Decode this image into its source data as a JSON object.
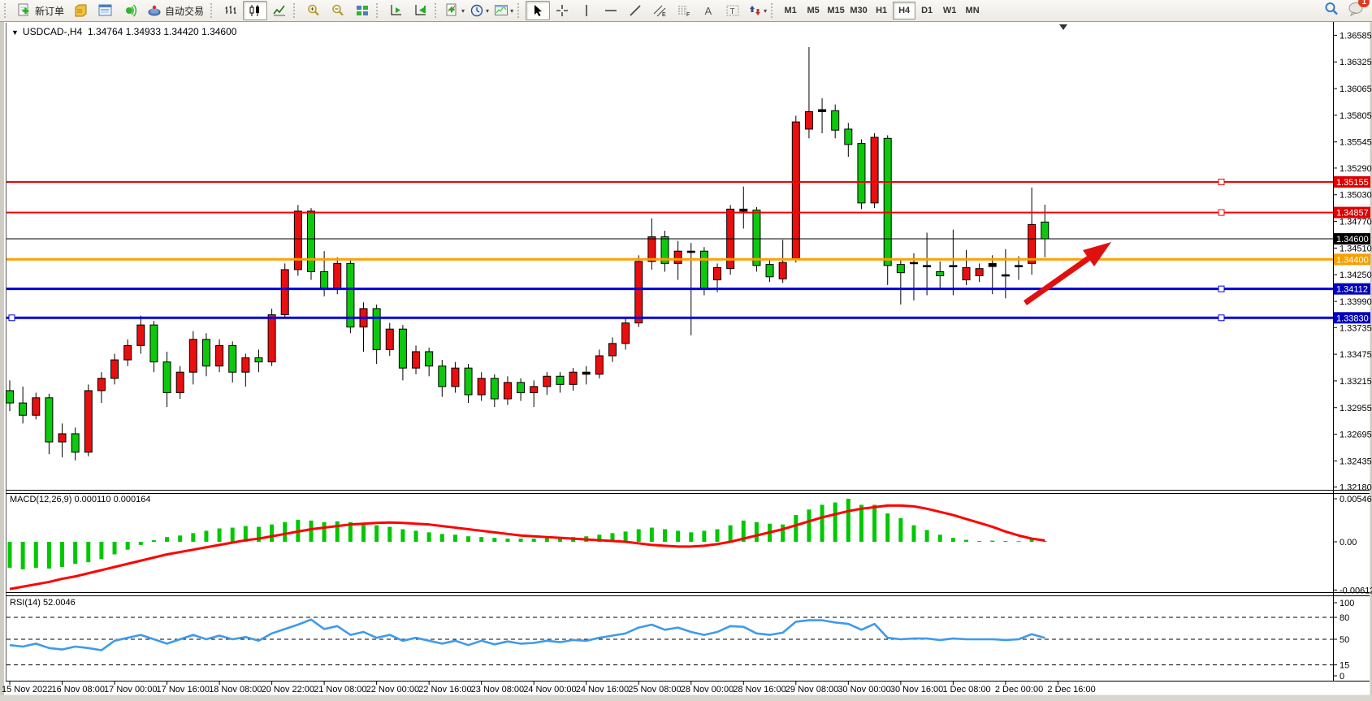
{
  "toolbar": {
    "new_order_label": "新订单",
    "autotrade_label": "自动交易",
    "timeframes": [
      "M1",
      "M5",
      "M15",
      "M30",
      "H1",
      "H4",
      "D1",
      "W1",
      "MN"
    ],
    "active_timeframe": "H4",
    "notification_count": "1",
    "buttons": [
      {
        "name": "new-order-button",
        "icon": "document-plus-icon",
        "label_key": "new_order_label",
        "group": 0
      },
      {
        "name": "profiles-button",
        "icon": "profiles-icon",
        "group": 0
      },
      {
        "name": "market-watch-button",
        "icon": "market-watch-icon",
        "group": 0
      },
      {
        "name": "signals-button",
        "icon": "signals-icon",
        "group": 0
      },
      {
        "name": "autotrade-button",
        "icon": "expert-hat-icon",
        "label_key": "autotrade_label",
        "group": 0
      },
      {
        "name": "bar-chart-button",
        "icon": "bar-chart-icon",
        "group": 1
      },
      {
        "name": "candlestick-button",
        "icon": "candlestick-icon",
        "active": true,
        "group": 1
      },
      {
        "name": "line-chart-button",
        "icon": "line-chart-icon",
        "group": 1
      },
      {
        "name": "zoom-in-button",
        "icon": "zoom-in-icon",
        "group": 2
      },
      {
        "name": "zoom-out-button",
        "icon": "zoom-out-icon",
        "group": 2
      },
      {
        "name": "tile-windows-button",
        "icon": "tile-windows-icon",
        "group": 2
      },
      {
        "name": "auto-scroll-button",
        "icon": "auto-scroll-icon",
        "group": 3
      },
      {
        "name": "chart-shift-button",
        "icon": "chart-shift-icon",
        "group": 3
      },
      {
        "name": "indicators-button",
        "icon": "indicators-icon",
        "dropdown": true,
        "group": 4
      },
      {
        "name": "periods-button",
        "icon": "clock-icon",
        "dropdown": true,
        "group": 4
      },
      {
        "name": "templates-button",
        "icon": "template-icon",
        "dropdown": true,
        "group": 4
      },
      {
        "name": "cursor-button",
        "icon": "cursor-icon",
        "active": true,
        "group": 5
      },
      {
        "name": "crosshair-button",
        "icon": "crosshair-icon",
        "group": 5
      },
      {
        "name": "vertical-line-button",
        "icon": "vertical-line-icon",
        "group": 5
      },
      {
        "name": "horizontal-line-button",
        "icon": "horizontal-line-icon",
        "group": 5
      },
      {
        "name": "trendline-button",
        "icon": "trendline-icon",
        "group": 5
      },
      {
        "name": "channel-button",
        "icon": "channel-icon",
        "group": 5
      },
      {
        "name": "fibonacci-button",
        "icon": "fibonacci-icon",
        "group": 5
      },
      {
        "name": "text-button",
        "icon": "letter-a-icon",
        "group": 5
      },
      {
        "name": "text-label-button",
        "icon": "label-t-icon",
        "group": 5
      },
      {
        "name": "arrows-button",
        "icon": "arrows-icon",
        "dropdown": true,
        "group": 5
      }
    ]
  },
  "chart": {
    "title": "USDCAD-,H4  1.34764 1.34933 1.34420 1.34600",
    "symbol": "USDCAD-",
    "period": "H4",
    "ohlc": {
      "open": "1.34764",
      "high": "1.34933",
      "low": "1.34420",
      "close": "1.34600"
    }
  },
  "indicators": {
    "macd_label": "MACD(12,26,9) 0.000110 0.000164",
    "rsi_label": "RSI(14) 52.0046",
    "macd_axis_labels": [
      "0.005469",
      "0.00",
      "-0.006124"
    ],
    "macd_axis_values": [
      0.005469,
      0.0,
      -0.006124
    ],
    "rsi_axis_labels": [
      "100",
      "80",
      "50",
      "15",
      "0"
    ],
    "rsi_axis_values": [
      100,
      80,
      50,
      15,
      0
    ],
    "rsi_dashed_levels": [
      80,
      50,
      15
    ]
  },
  "price_axis": {
    "labels": [
      "1.36585",
      "1.36325",
      "1.36065",
      "1.35805",
      "1.35545",
      "1.35290",
      "1.35030",
      "1.34770",
      "1.34510",
      "1.34250",
      "1.33990",
      "1.33735",
      "1.33475",
      "1.33215",
      "1.32955",
      "1.32695",
      "1.32435",
      "1.32180"
    ]
  },
  "time_axis": {
    "labels": [
      "15 Nov 2022",
      "16 Nov 08:00",
      "17 Nov 00:00",
      "17 Nov 16:00",
      "18 Nov 08:00",
      "20 Nov 22:00",
      "21 Nov 08:00",
      "22 Nov 00:00",
      "22 Nov 16:00",
      "23 Nov 08:00",
      "24 Nov 00:00",
      "24 Nov 16:00",
      "25 Nov 08:00",
      "28 Nov 00:00",
      "28 Nov 16:00",
      "29 Nov 08:00",
      "30 Nov 00:00",
      "30 Nov 16:00",
      "1 Dec 08:00",
      "2 Dec 00:00",
      "2 Dec 16:00"
    ]
  },
  "colors": {
    "candle_up": "#EA0F0F",
    "candle_down": "#0CC90C",
    "candle_outline": "#000000",
    "macd_histogram": "#00C800",
    "macd_signal": "#FF0000",
    "rsi_line": "#3E9BEA",
    "resistance_line": "#F40000",
    "pivot_line": "#FFA000",
    "support_line": "#0000DD",
    "current_price_line": "#000000"
  },
  "chart_data": [
    {
      "type": "candlestick",
      "title": "USDCAD- H4",
      "note": "OHLC per 4h bar, 15 Nov 2022 16:00 - 2 Dec 2022 16:00; up bars red, down bars green",
      "ylim": [
        1.3218,
        1.36585
      ],
      "candles": [
        [
          1.3312,
          1.3322,
          1.3292,
          1.33
        ],
        [
          1.33,
          1.3316,
          1.328,
          1.3288
        ],
        [
          1.3288,
          1.331,
          1.3284,
          1.3305
        ],
        [
          1.3305,
          1.3309,
          1.325,
          1.3262
        ],
        [
          1.3262,
          1.328,
          1.3247,
          1.327
        ],
        [
          1.327,
          1.3276,
          1.3244,
          1.3252
        ],
        [
          1.3252,
          1.3318,
          1.3248,
          1.3312
        ],
        [
          1.3312,
          1.333,
          1.33,
          1.3324
        ],
        [
          1.3324,
          1.3348,
          1.3318,
          1.3342
        ],
        [
          1.3342,
          1.3362,
          1.3336,
          1.3356
        ],
        [
          1.3356,
          1.3385,
          1.3348,
          1.3376
        ],
        [
          1.3376,
          1.338,
          1.333,
          1.334
        ],
        [
          1.334,
          1.335,
          1.3296,
          1.331
        ],
        [
          1.331,
          1.3336,
          1.3304,
          1.333
        ],
        [
          1.333,
          1.337,
          1.3318,
          1.3362
        ],
        [
          1.3362,
          1.3368,
          1.3326,
          1.3336
        ],
        [
          1.3336,
          1.3362,
          1.333,
          1.3356
        ],
        [
          1.3356,
          1.336,
          1.332,
          1.333
        ],
        [
          1.333,
          1.3348,
          1.3316,
          1.3344
        ],
        [
          1.3344,
          1.3352,
          1.333,
          1.334
        ],
        [
          1.334,
          1.3392,
          1.3336,
          1.3386
        ],
        [
          1.3386,
          1.3436,
          1.3382,
          1.343
        ],
        [
          1.343,
          1.3493,
          1.3424,
          1.3487
        ],
        [
          1.3487,
          1.349,
          1.342,
          1.3428
        ],
        [
          1.3428,
          1.3448,
          1.3404,
          1.3412
        ],
        [
          1.3412,
          1.3442,
          1.3406,
          1.3436
        ],
        [
          1.3436,
          1.344,
          1.3368,
          1.3374
        ],
        [
          1.3374,
          1.3398,
          1.335,
          1.3392
        ],
        [
          1.3392,
          1.3396,
          1.3338,
          1.3352
        ],
        [
          1.3352,
          1.3378,
          1.3346,
          1.3372
        ],
        [
          1.3372,
          1.3376,
          1.3322,
          1.3334
        ],
        [
          1.3334,
          1.3356,
          1.3328,
          1.335
        ],
        [
          1.335,
          1.3354,
          1.3326,
          1.3336
        ],
        [
          1.3336,
          1.3342,
          1.3306,
          1.3316
        ],
        [
          1.3316,
          1.334,
          1.331,
          1.3334
        ],
        [
          1.3334,
          1.3338,
          1.33,
          1.3308
        ],
        [
          1.3308,
          1.333,
          1.3302,
          1.3324
        ],
        [
          1.3324,
          1.3328,
          1.3296,
          1.3304
        ],
        [
          1.3304,
          1.3326,
          1.3298,
          1.332
        ],
        [
          1.332,
          1.3324,
          1.3302,
          1.331
        ],
        [
          1.331,
          1.3322,
          1.3296,
          1.3316
        ],
        [
          1.3316,
          1.333,
          1.3308,
          1.3326
        ],
        [
          1.3326,
          1.333,
          1.331,
          1.3318
        ],
        [
          1.3318,
          1.3334,
          1.3312,
          1.333
        ],
        [
          1.333,
          1.3336,
          1.3318,
          1.3328
        ],
        [
          1.3328,
          1.3352,
          1.3324,
          1.3346
        ],
        [
          1.3346,
          1.3364,
          1.334,
          1.3358
        ],
        [
          1.3358,
          1.3384,
          1.3352,
          1.3378
        ],
        [
          1.3378,
          1.3444,
          1.3374,
          1.3438
        ],
        [
          1.3438,
          1.348,
          1.343,
          1.3462
        ],
        [
          1.3462,
          1.3468,
          1.3428,
          1.3436
        ],
        [
          1.3436,
          1.3458,
          1.342,
          1.3448
        ],
        [
          1.3448,
          1.3456,
          1.3366,
          1.3448
        ],
        [
          1.3448,
          1.3452,
          1.3405,
          1.3411
        ],
        [
          1.342,
          1.3436,
          1.3408,
          1.3432
        ],
        [
          1.3431,
          1.3493,
          1.3425,
          1.3489
        ],
        [
          1.3489,
          1.3511,
          1.347,
          1.3487
        ],
        [
          1.3488,
          1.3491,
          1.3428,
          1.3434
        ],
        [
          1.3435,
          1.3441,
          1.3418,
          1.3423
        ],
        [
          1.3421,
          1.3459,
          1.3417,
          1.3437
        ],
        [
          1.3441,
          1.358,
          1.3437,
          1.3574
        ],
        [
          1.3567,
          1.3647,
          1.3558,
          1.3584
        ],
        [
          1.3586,
          1.3597,
          1.3563,
          1.3584
        ],
        [
          1.3585,
          1.3591,
          1.3558,
          1.3566
        ],
        [
          1.3567,
          1.3573,
          1.354,
          1.3552
        ],
        [
          1.3553,
          1.3557,
          1.3489,
          1.3495
        ],
        [
          1.3495,
          1.3563,
          1.349,
          1.3559
        ],
        [
          1.3558,
          1.3561,
          1.3415,
          1.3434
        ],
        [
          1.3435,
          1.3441,
          1.3396,
          1.3427
        ],
        [
          1.3437,
          1.3446,
          1.34,
          1.3436
        ],
        [
          1.3434,
          1.3466,
          1.3405,
          1.3433
        ],
        [
          1.3428,
          1.3438,
          1.3412,
          1.3424
        ],
        [
          1.3434,
          1.3469,
          1.3405,
          1.3434
        ],
        [
          1.342,
          1.3449,
          1.3415,
          1.3432
        ],
        [
          1.3424,
          1.3436,
          1.3418,
          1.3431
        ],
        [
          1.3436,
          1.3444,
          1.3406,
          1.3433
        ],
        [
          1.3425,
          1.345,
          1.3402,
          1.3425
        ],
        [
          1.3434,
          1.3443,
          1.342,
          1.3434
        ],
        [
          1.3436,
          1.351,
          1.3425,
          1.3474
        ],
        [
          1.34764,
          1.34933,
          1.3442,
          1.346
        ]
      ],
      "overlays": {
        "hlines": [
          {
            "label": "1.35155",
            "price": 1.35155,
            "color": "#F40000",
            "width": 2,
            "badge": "#DD0000",
            "anchor_right": true
          },
          {
            "label": "1.34857",
            "price": 1.34857,
            "color": "#F40000",
            "width": 2,
            "badge": "#DD0000",
            "anchor_right": true
          },
          {
            "label": "1.34600",
            "price": 1.346,
            "color": "#000000",
            "width": 1,
            "badge": "#000000"
          },
          {
            "label": "1.34400",
            "price": 1.344,
            "color": "#FFA000",
            "width": 3,
            "badge": "#F5A000"
          },
          {
            "label": "1.34112",
            "price": 1.34112,
            "color": "#0000DD",
            "width": 3,
            "badge": "#0000BB",
            "anchor_right": true
          },
          {
            "label": "1.33830",
            "price": 1.3383,
            "color": "#0000DD",
            "width": 3,
            "badge": "#0000BB",
            "anchor_right": true,
            "anchor_left": true
          }
        ],
        "arrow": {
          "tail": [
            1262,
            373
          ],
          "head": [
            1368,
            298
          ],
          "color": "#E01010"
        }
      }
    },
    {
      "type": "bar",
      "title": "MACD(12,26,9) histogram + signal",
      "ylim": [
        -0.006124,
        0.005469
      ],
      "histogram": [
        -0.0033,
        -0.0035,
        -0.0033,
        -0.0034,
        -0.0032,
        -0.0028,
        -0.0026,
        -0.0022,
        -0.0016,
        -0.001,
        -0.0004,
        0.0002,
        0.0006,
        0.0008,
        0.0011,
        0.0014,
        0.0017,
        0.0018,
        0.002,
        0.0019,
        0.0022,
        0.0025,
        0.0028,
        0.0027,
        0.0025,
        0.0026,
        0.0025,
        0.0023,
        0.0021,
        0.0019,
        0.0016,
        0.0014,
        0.0012,
        0.001,
        0.0009,
        0.0007,
        0.0006,
        0.0005,
        0.0004,
        0.0004,
        0.0004,
        0.0005,
        0.0005,
        0.0006,
        0.0007,
        0.0009,
        0.0011,
        0.0013,
        0.0016,
        0.0018,
        0.0016,
        0.0014,
        0.0012,
        0.0014,
        0.0016,
        0.0021,
        0.0027,
        0.0025,
        0.0023,
        0.0022,
        0.0034,
        0.0041,
        0.0047,
        0.005,
        0.005469,
        0.0047,
        0.0047,
        0.0036,
        0.003,
        0.0021,
        0.0015,
        0.0009,
        0.0005,
        0.00025,
        0.0001,
        0.00015,
        0.0001,
        8e-05,
        0.0003,
        0.00011
      ],
      "signal": [
        -0.006,
        -0.0057,
        -0.0054,
        -0.0051,
        -0.0047,
        -0.0044,
        -0.004,
        -0.0036,
        -0.0032,
        -0.0028,
        -0.0024,
        -0.002,
        -0.0016,
        -0.0013,
        -0.001,
        -0.0007,
        -0.0004,
        -0.0001,
        0.0002,
        0.0004,
        0.0007,
        0.001,
        0.0013,
        0.0016,
        0.0018,
        0.002,
        0.0022,
        0.0023,
        0.0024,
        0.00245,
        0.0024,
        0.0023,
        0.0022,
        0.002,
        0.0018,
        0.0016,
        0.0014,
        0.0012,
        0.001,
        0.0008,
        0.0007,
        0.0006,
        0.0005,
        0.0004,
        0.0003,
        0.0002,
        0.0001,
        0.0,
        -0.0002,
        -0.0004,
        -0.0005,
        -0.0006,
        -0.0006,
        -0.0005,
        -0.0003,
        0.0,
        0.0004,
        0.0008,
        0.0012,
        0.0016,
        0.0021,
        0.0026,
        0.0031,
        0.0035,
        0.0039,
        0.0042,
        0.0044,
        0.0046,
        0.0046,
        0.0045,
        0.0042,
        0.0038,
        0.0034,
        0.0029,
        0.0024,
        0.0019,
        0.0013,
        0.0008,
        0.0004,
        0.000164
      ]
    },
    {
      "type": "line",
      "title": "RSI(14)",
      "ylim": [
        0,
        100
      ],
      "values": [
        42,
        40,
        44,
        38,
        36,
        40,
        38,
        35,
        48,
        52,
        56,
        50,
        44,
        50,
        56,
        50,
        55,
        50,
        53,
        48,
        58,
        64,
        70,
        77,
        64,
        68,
        56,
        60,
        52,
        56,
        48,
        52,
        48,
        44,
        48,
        42,
        48,
        43,
        47,
        44,
        45,
        48,
        46,
        49,
        48,
        52,
        55,
        58,
        66,
        70,
        63,
        66,
        60,
        56,
        60,
        68,
        67,
        58,
        56,
        59,
        74,
        76,
        76,
        73,
        71,
        63,
        71,
        52,
        50,
        51,
        51,
        49,
        51,
        50,
        50,
        50,
        49,
        50,
        57,
        52.0046
      ]
    }
  ]
}
